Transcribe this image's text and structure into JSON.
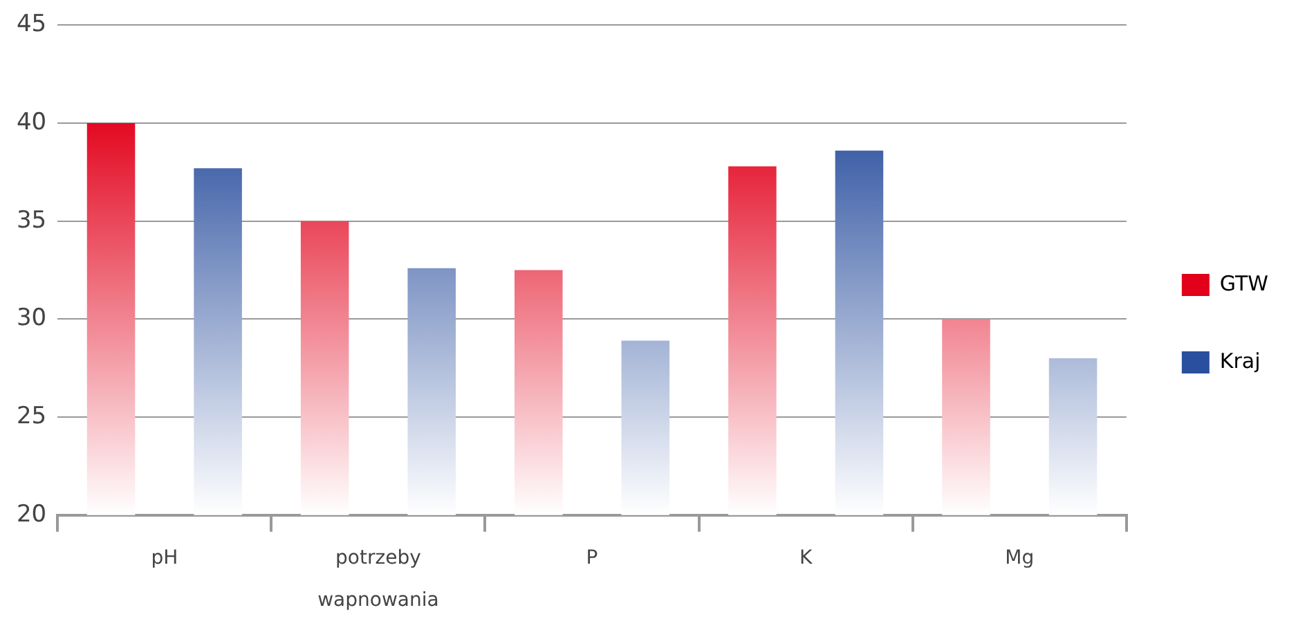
{
  "chart_data": {
    "type": "bar",
    "categories": [
      "pH",
      "potrzeby wapnowania",
      "P",
      "K",
      "Mg"
    ],
    "series": [
      {
        "name": "GTW",
        "color": "#e2001a",
        "values": [
          40.0,
          35.0,
          32.5,
          37.8,
          30.0
        ]
      },
      {
        "name": "Kraj",
        "color": "#2a4f9e",
        "values": [
          37.7,
          32.6,
          28.9,
          38.6,
          28.0
        ]
      }
    ],
    "ylim": [
      20,
      45
    ],
    "yticks": [
      20,
      25,
      30,
      35,
      40,
      45
    ],
    "grid": "y",
    "legend": "right"
  }
}
